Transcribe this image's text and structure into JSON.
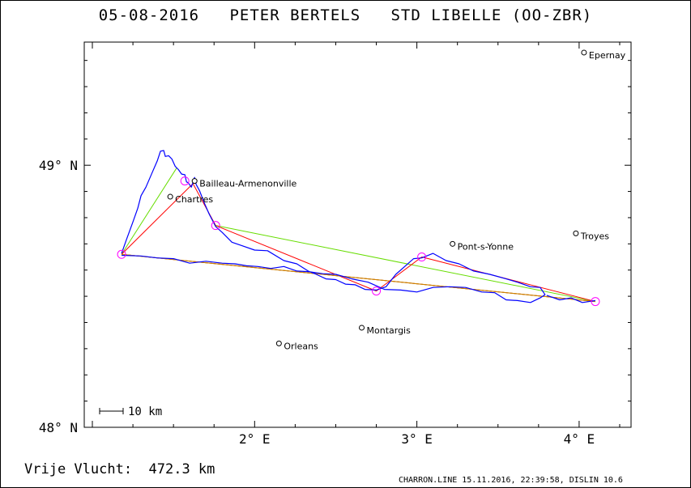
{
  "title": "05-08-2016   PETER BERTELS   STD LIBELLE (OO-ZBR)",
  "footer": {
    "distance": "Vrije Vlucht:  472.3 km",
    "generator": "CHARRON.LINE 15.11.2016, 22:39:58, DISLIN 10.6"
  },
  "scale_bar": {
    "label": "10 km",
    "length_km": 10
  },
  "axes": {
    "lat_range": [
      48.0,
      49.47
    ],
    "lon_range": [
      0.95,
      4.32
    ],
    "lat_ticks": [
      {
        "value": 48.0,
        "label": "48° N"
      },
      {
        "value": 49.0,
        "label": "49° N"
      }
    ],
    "lon_ticks": [
      {
        "value": 2.0,
        "label": "2° E"
      },
      {
        "value": 3.0,
        "label": "3° E"
      },
      {
        "value": 4.0,
        "label": "4° E"
      }
    ]
  },
  "places": [
    {
      "name": "Epernay",
      "lon": 4.03,
      "lat": 49.43
    },
    {
      "name": "Bailleau-Armenonville",
      "lon": 1.63,
      "lat": 48.94
    },
    {
      "name": "Chartres",
      "lon": 1.48,
      "lat": 48.88
    },
    {
      "name": "Pont-s-Yonne",
      "lon": 3.22,
      "lat": 48.7
    },
    {
      "name": "Troyes",
      "lon": 3.98,
      "lat": 48.74
    },
    {
      "name": "Montargis",
      "lon": 2.66,
      "lat": 48.38
    },
    {
      "name": "Orleans",
      "lon": 2.15,
      "lat": 48.32
    }
  ],
  "turnpoints": [
    {
      "lon": 1.57,
      "lat": 48.94
    },
    {
      "lon": 1.18,
      "lat": 48.66
    },
    {
      "lon": 1.76,
      "lat": 48.77
    },
    {
      "lon": 2.75,
      "lat": 48.52
    },
    {
      "lon": 3.03,
      "lat": 48.65
    },
    {
      "lon": 4.1,
      "lat": 48.48
    }
  ],
  "legs": {
    "red": [
      [
        {
          "lon": 1.62,
          "lat": 48.93
        },
        {
          "lon": 1.18,
          "lat": 48.66
        }
      ],
      [
        {
          "lon": 1.62,
          "lat": 48.93
        },
        {
          "lon": 1.76,
          "lat": 48.77
        }
      ],
      [
        {
          "lon": 1.76,
          "lat": 48.77
        },
        {
          "lon": 2.75,
          "lat": 48.52
        }
      ],
      [
        {
          "lon": 2.75,
          "lat": 48.52
        },
        {
          "lon": 3.03,
          "lat": 48.65
        }
      ],
      [
        {
          "lon": 3.03,
          "lat": 48.65
        },
        {
          "lon": 4.1,
          "lat": 48.48
        }
      ],
      [
        {
          "lon": 1.18,
          "lat": 48.66
        },
        {
          "lon": 4.1,
          "lat": 48.48
        }
      ]
    ],
    "green": [
      [
        {
          "lon": 1.18,
          "lat": 48.66
        },
        {
          "lon": 1.52,
          "lat": 48.99
        }
      ],
      [
        {
          "lon": 1.76,
          "lat": 48.77
        },
        {
          "lon": 4.1,
          "lat": 48.48
        }
      ],
      [
        {
          "lon": 1.18,
          "lat": 48.66
        },
        {
          "lon": 4.1,
          "lat": 48.48
        }
      ]
    ],
    "orange": [
      [
        {
          "lon": 1.18,
          "lat": 48.66
        },
        {
          "lon": 4.1,
          "lat": 48.48
        }
      ]
    ]
  },
  "track": [
    [
      1.18,
      48.66
    ],
    [
      1.21,
      48.72
    ],
    [
      1.25,
      48.78
    ],
    [
      1.28,
      48.84
    ],
    [
      1.3,
      48.88
    ],
    [
      1.33,
      48.92
    ],
    [
      1.37,
      48.97
    ],
    [
      1.4,
      49.02
    ],
    [
      1.42,
      49.05
    ],
    [
      1.44,
      49.06
    ],
    [
      1.45,
      49.03
    ],
    [
      1.47,
      49.04
    ],
    [
      1.49,
      49.02
    ],
    [
      1.51,
      49.0
    ],
    [
      1.53,
      48.98
    ],
    [
      1.55,
      48.97
    ],
    [
      1.57,
      48.96
    ],
    [
      1.58,
      48.94
    ],
    [
      1.59,
      48.93
    ],
    [
      1.61,
      48.92
    ],
    [
      1.63,
      48.95
    ],
    [
      1.64,
      48.93
    ],
    [
      1.66,
      48.9
    ],
    [
      1.69,
      48.86
    ],
    [
      1.72,
      48.81
    ],
    [
      1.76,
      48.77
    ],
    [
      1.8,
      48.74
    ],
    [
      1.86,
      48.71
    ],
    [
      1.92,
      48.69
    ],
    [
      2.0,
      48.68
    ],
    [
      2.08,
      48.67
    ],
    [
      2.18,
      48.64
    ],
    [
      2.26,
      48.62
    ],
    [
      2.33,
      48.6
    ],
    [
      2.38,
      48.58
    ],
    [
      2.44,
      48.57
    ],
    [
      2.5,
      48.56
    ],
    [
      2.56,
      48.55
    ],
    [
      2.62,
      48.54
    ],
    [
      2.68,
      48.53
    ],
    [
      2.75,
      48.52
    ],
    [
      2.81,
      48.54
    ],
    [
      2.87,
      48.58
    ],
    [
      2.93,
      48.62
    ],
    [
      2.98,
      48.64
    ],
    [
      3.03,
      48.65
    ],
    [
      3.1,
      48.66
    ],
    [
      3.18,
      48.64
    ],
    [
      3.26,
      48.62
    ],
    [
      3.35,
      48.6
    ],
    [
      3.45,
      48.58
    ],
    [
      3.55,
      48.57
    ],
    [
      3.62,
      48.55
    ],
    [
      3.7,
      48.54
    ],
    [
      3.76,
      48.53
    ],
    [
      3.79,
      48.51
    ],
    [
      3.76,
      48.49
    ],
    [
      3.7,
      48.48
    ],
    [
      3.62,
      48.48
    ],
    [
      3.55,
      48.49
    ],
    [
      3.48,
      48.51
    ],
    [
      3.4,
      48.52
    ],
    [
      3.3,
      48.53
    ],
    [
      3.2,
      48.54
    ],
    [
      3.1,
      48.53
    ],
    [
      3.0,
      48.52
    ],
    [
      2.9,
      48.52
    ],
    [
      2.8,
      48.53
    ],
    [
      2.7,
      48.55
    ],
    [
      2.6,
      48.57
    ],
    [
      2.5,
      48.58
    ],
    [
      2.42,
      48.59
    ],
    [
      2.34,
      48.59
    ],
    [
      2.26,
      48.6
    ],
    [
      2.18,
      48.61
    ],
    [
      2.1,
      48.61
    ],
    [
      2.02,
      48.61
    ],
    [
      1.95,
      48.62
    ],
    [
      1.88,
      48.62
    ],
    [
      1.8,
      48.63
    ],
    [
      1.7,
      48.63
    ],
    [
      1.6,
      48.63
    ],
    [
      1.5,
      48.64
    ],
    [
      1.4,
      48.65
    ],
    [
      1.3,
      48.65
    ],
    [
      1.18,
      48.66
    ]
  ],
  "track_east": [
    [
      3.8,
      48.5
    ],
    [
      3.88,
      48.49
    ],
    [
      3.95,
      48.49
    ],
    [
      4.02,
      48.48
    ],
    [
      4.1,
      48.48
    ]
  ],
  "colors": {
    "track": "#0000ff",
    "turnpoint": "#ff00ff",
    "leg_red": "#ff0000",
    "leg_green": "#66dd00",
    "leg_orange": "#cc8800",
    "frame": "#000000"
  }
}
